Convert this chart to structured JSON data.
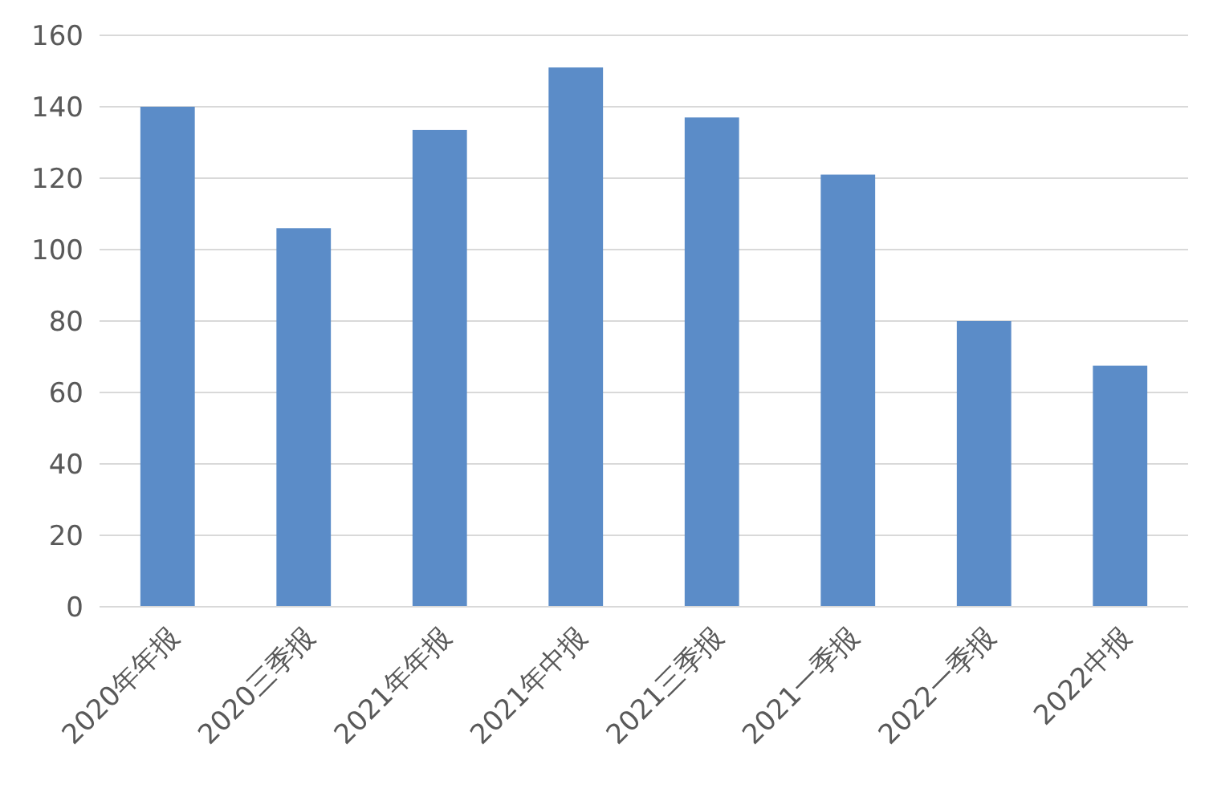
{
  "chart_data": {
    "type": "bar",
    "categories": [
      "2020年年报",
      "2020三季报",
      "2021年年报",
      "2021年中报",
      "2021三季报",
      "2021一季报",
      "2022一季报",
      "2022中报"
    ],
    "values": [
      140,
      106,
      133.5,
      151,
      137,
      121,
      80,
      67.5
    ],
    "color": "#5b8cc8",
    "ylim": [
      0,
      160
    ],
    "yticks": [
      0,
      20,
      40,
      60,
      80,
      100,
      120,
      140,
      160
    ],
    "grid": "y"
  }
}
